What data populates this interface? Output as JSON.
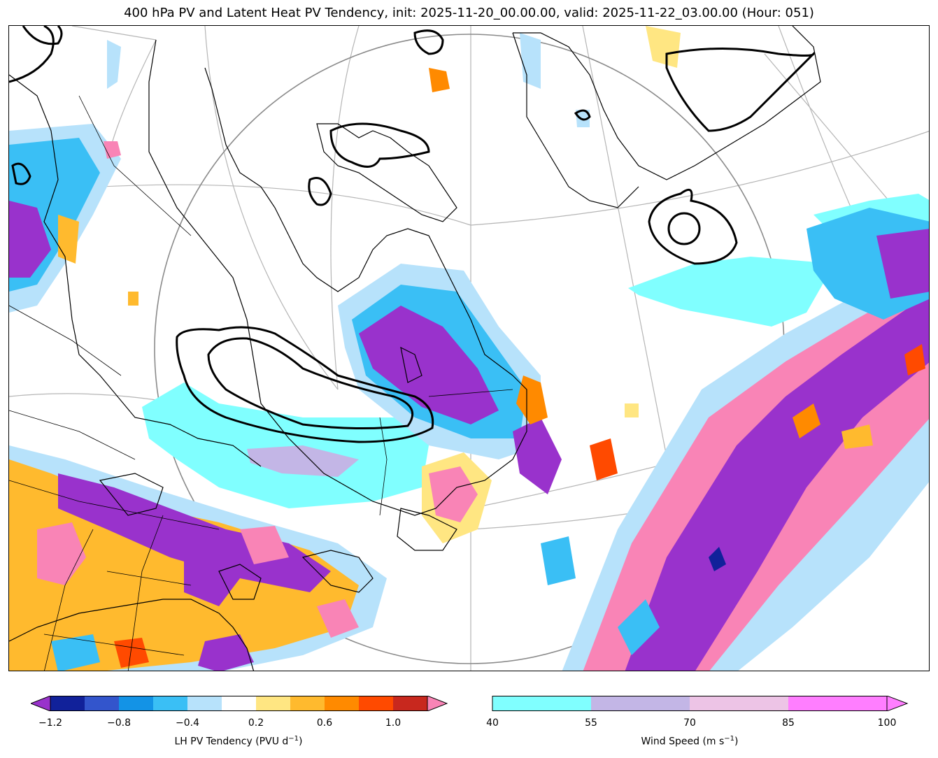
{
  "title": "400 hPa PV and Latent Heat PV Tendency, init: 2025-11-20_00.00.00, valid: 2025-11-22_03.00.00 (Hour: 051)",
  "colors": {
    "lh_bins": [
      "#9932CC",
      "#11219A",
      "#3355CC",
      "#1393E6",
      "#3ABFF5",
      "#B7E2FB",
      "#FFFFFF",
      "#FFE682",
      "#FFBA2E",
      "#FF8A00",
      "#FF4A00",
      "#C8281E",
      "#F984B6"
    ],
    "wind_bins": [
      "#80FFFF",
      "#C3B6E6",
      "#EDC4E6",
      "#FF7EFF"
    ]
  },
  "lh_colorbar": {
    "ticks": [
      "−1.2",
      "−0.8",
      "−0.4",
      "0.2",
      "0.6",
      "1.0"
    ],
    "label": "LH PV Tendency (PVU d",
    "label_sup": "−1",
    "label_tail": ")"
  },
  "wind_colorbar": {
    "ticks": [
      "40",
      "55",
      "70",
      "85",
      "100"
    ],
    "label": "Wind Speed (m s",
    "label_sup": "−1",
    "label_tail": ")"
  }
}
